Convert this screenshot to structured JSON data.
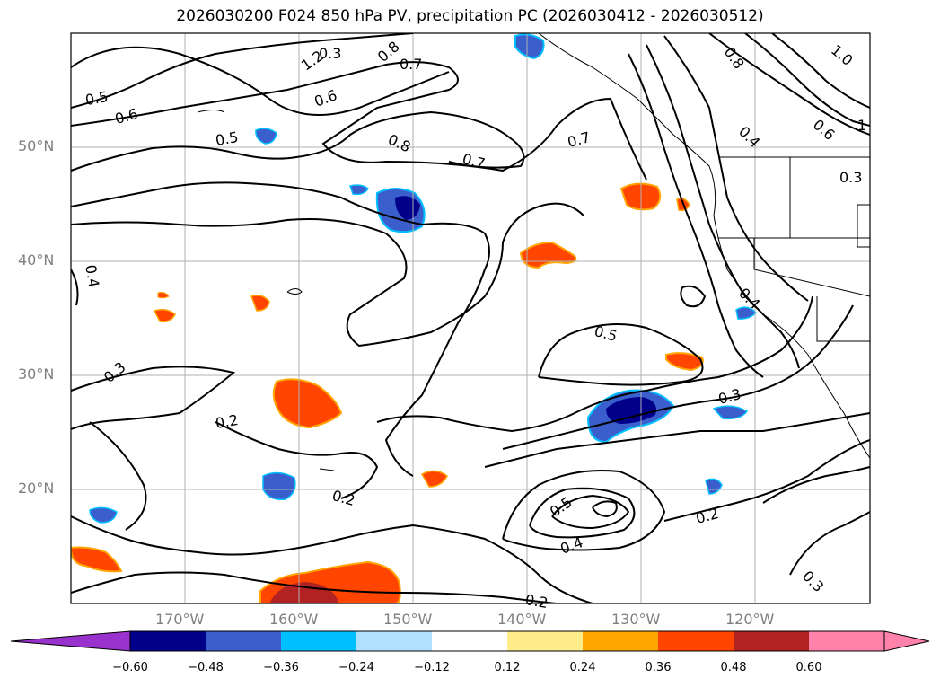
{
  "title": "2026030200 F024 850 hPa PV, precipitation PC (2026030412 - 2026030512)",
  "map": {
    "projection": "lat-lon",
    "lon_range": [
      -180,
      -110
    ],
    "lat_range": [
      10,
      60
    ],
    "lat_labels": [
      "50°N",
      "40°N",
      "30°N",
      "20°N"
    ],
    "lon_labels": [
      "170°W",
      "160°W",
      "150°W",
      "140°W",
      "130°W",
      "120°W"
    ],
    "contour_labels": [
      "1.2",
      "0.8",
      "0.7",
      "0.5",
      "0.6",
      "0.5",
      "0.8",
      "0.7",
      "0.7",
      "0.8",
      "0.6",
      "0.4",
      "1.0",
      "0.6",
      "0.3",
      "0.4",
      "0.4",
      "0.3",
      "0.2",
      "0.5",
      "0.3",
      "0.2",
      "0.5",
      "0.4",
      "0.2",
      "0.2",
      "0.3",
      "0.3",
      "1"
    ]
  },
  "colorbar": {
    "ticks": [
      "−0.60",
      "−0.48",
      "−0.36",
      "−0.24",
      "−0.12",
      "0.12",
      "0.24",
      "0.36",
      "0.48",
      "0.60"
    ],
    "colors": [
      "#9932cc",
      "#00008b",
      "#3a5fcd",
      "#00bfff",
      "#b0e2ff",
      "#ffffff",
      "#ffec8b",
      "#ffa500",
      "#ff4500",
      "#b22222",
      "#ff82ab"
    ]
  }
}
